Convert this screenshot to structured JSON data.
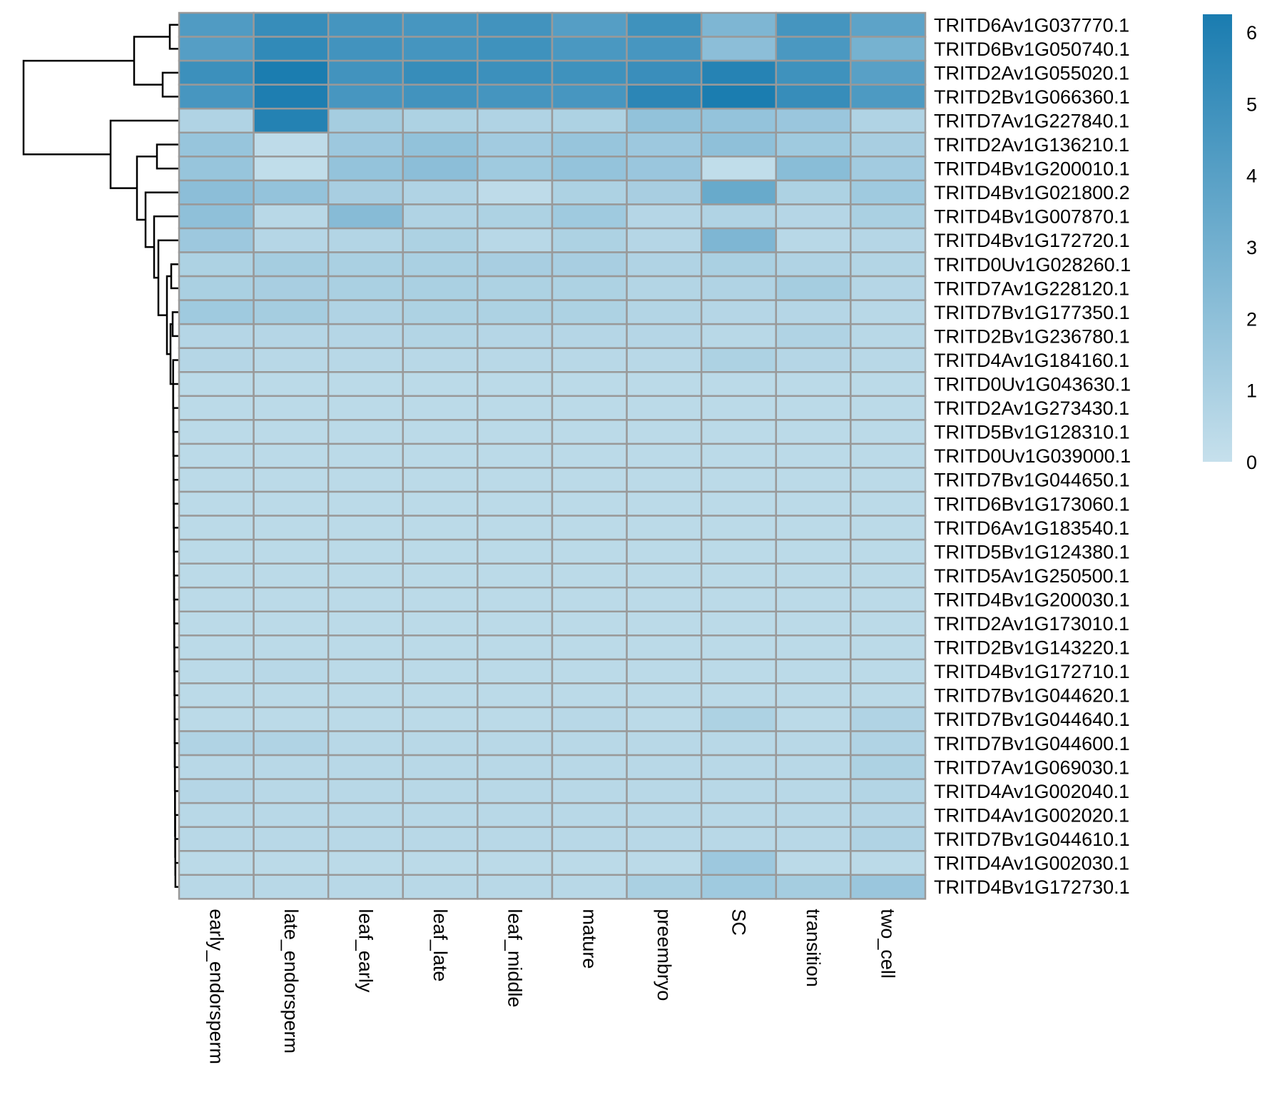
{
  "chart_data": {
    "type": "heatmap",
    "title": "",
    "columns": [
      "early_endorsperm",
      "late_endorsperm",
      "leaf_early",
      "leaf_late",
      "leaf_middle",
      "mature",
      "preembryo",
      "SC",
      "transition",
      "two_cell"
    ],
    "rows": [
      "TRITD6Av1G037770.1",
      "TRITD6Bv1G050740.1",
      "TRITD2Av1G055020.1",
      "TRITD2Bv1G066360.1",
      "TRITD7Av1G227840.1",
      "TRITD2Av1G136210.1",
      "TRITD4Bv1G200010.1",
      "TRITD4Bv1G021800.2",
      "TRITD4Bv1G007870.1",
      "TRITD4Bv1G172720.1",
      "TRITD0Uv1G028260.1",
      "TRITD7Av1G228120.1",
      "TRITD7Bv1G177350.1",
      "TRITD2Bv1G236780.1",
      "TRITD4Av1G184160.1",
      "TRITD0Uv1G043630.1",
      "TRITD2Av1G273430.1",
      "TRITD5Bv1G128310.1",
      "TRITD0Uv1G039000.1",
      "TRITD7Bv1G044650.1",
      "TRITD6Bv1G173060.1",
      "TRITD6Av1G183540.1",
      "TRITD5Bv1G124380.1",
      "TRITD5Av1G250500.1",
      "TRITD4Bv1G200030.1",
      "TRITD2Av1G173010.1",
      "TRITD2Bv1G143220.1",
      "TRITD4Bv1G172710.1",
      "TRITD7Bv1G044620.1",
      "TRITD7Bv1G044640.1",
      "TRITD7Bv1G044600.1",
      "TRITD7Av1G069030.1",
      "TRITD4Av1G002040.1",
      "TRITD4Av1G002020.1",
      "TRITD7Bv1G044610.1",
      "TRITD4Av1G002030.1",
      "TRITD4Bv1G172730.1"
    ],
    "values": [
      [
        4.3,
        5.2,
        4.7,
        4.6,
        4.8,
        4.1,
        4.9,
        2.6,
        4.7,
        3.8
      ],
      [
        4.1,
        5.4,
        4.8,
        4.7,
        4.9,
        4.5,
        4.6,
        2.1,
        4.5,
        2.9
      ],
      [
        5.0,
        6.2,
        4.8,
        5.2,
        5.0,
        4.9,
        5.1,
        5.8,
        4.9,
        4.0
      ],
      [
        4.6,
        6.1,
        4.6,
        4.8,
        4.7,
        4.6,
        5.6,
        6.2,
        5.2,
        4.4
      ],
      [
        0.8,
        5.9,
        1.2,
        0.9,
        0.8,
        0.9,
        1.9,
        1.8,
        1.6,
        0.8
      ],
      [
        1.7,
        0.3,
        1.5,
        1.9,
        1.3,
        1.7,
        1.5,
        2.0,
        1.4,
        1.1
      ],
      [
        1.7,
        0.2,
        1.8,
        2.1,
        1.4,
        1.8,
        1.6,
        0.2,
        2.2,
        1.3
      ],
      [
        2.1,
        1.8,
        1.1,
        0.8,
        0.3,
        0.9,
        1.1,
        3.4,
        0.9,
        1.4
      ],
      [
        2.0,
        0.5,
        2.3,
        0.8,
        0.9,
        1.4,
        0.6,
        0.8,
        0.6,
        1.0
      ],
      [
        1.5,
        0.6,
        0.7,
        0.9,
        0.5,
        0.9,
        0.6,
        2.6,
        0.5,
        0.6
      ],
      [
        0.9,
        1.2,
        1.0,
        1.0,
        1.1,
        1.1,
        0.8,
        1.0,
        0.8,
        0.7
      ],
      [
        1.0,
        1.1,
        1.0,
        1.0,
        0.9,
        0.9,
        0.7,
        0.8,
        1.2,
        0.6
      ],
      [
        1.4,
        1.2,
        0.8,
        0.9,
        0.9,
        0.9,
        0.7,
        0.6,
        0.6,
        0.5
      ],
      [
        0.6,
        0.6,
        0.6,
        0.7,
        0.6,
        0.6,
        0.6,
        0.5,
        0.8,
        0.5
      ],
      [
        0.6,
        0.5,
        0.5,
        0.5,
        0.5,
        0.5,
        0.5,
        0.9,
        0.6,
        0.5
      ],
      [
        0.4,
        0.4,
        0.4,
        0.4,
        0.4,
        0.4,
        0.4,
        0.4,
        0.4,
        0.4
      ],
      [
        0.4,
        0.4,
        0.4,
        0.4,
        0.4,
        0.4,
        0.4,
        0.4,
        0.4,
        0.4
      ],
      [
        0.4,
        0.4,
        0.4,
        0.4,
        0.4,
        0.4,
        0.4,
        0.4,
        0.4,
        0.4
      ],
      [
        0.4,
        0.4,
        0.4,
        0.4,
        0.4,
        0.4,
        0.4,
        0.4,
        0.4,
        0.4
      ],
      [
        0.4,
        0.4,
        0.4,
        0.4,
        0.4,
        0.4,
        0.4,
        0.4,
        0.4,
        0.4
      ],
      [
        0.4,
        0.4,
        0.4,
        0.4,
        0.4,
        0.4,
        0.4,
        0.4,
        0.4,
        0.4
      ],
      [
        0.4,
        0.4,
        0.4,
        0.4,
        0.4,
        0.4,
        0.4,
        0.4,
        0.4,
        0.4
      ],
      [
        0.4,
        0.4,
        0.4,
        0.4,
        0.4,
        0.4,
        0.4,
        0.4,
        0.4,
        0.4
      ],
      [
        0.4,
        0.4,
        0.4,
        0.4,
        0.4,
        0.4,
        0.4,
        0.4,
        0.4,
        0.4
      ],
      [
        0.4,
        0.4,
        0.4,
        0.4,
        0.4,
        0.4,
        0.4,
        0.4,
        0.4,
        0.4
      ],
      [
        0.4,
        0.4,
        0.4,
        0.4,
        0.4,
        0.4,
        0.4,
        0.4,
        0.4,
        0.4
      ],
      [
        0.4,
        0.4,
        0.4,
        0.4,
        0.4,
        0.4,
        0.4,
        0.4,
        0.4,
        0.4
      ],
      [
        0.4,
        0.5,
        0.4,
        0.4,
        0.4,
        0.4,
        0.4,
        0.4,
        0.4,
        0.4
      ],
      [
        0.4,
        0.4,
        0.4,
        0.4,
        0.4,
        0.4,
        0.4,
        0.4,
        0.4,
        0.4
      ],
      [
        0.4,
        0.4,
        0.4,
        0.4,
        0.4,
        0.5,
        0.4,
        0.9,
        0.4,
        0.8
      ],
      [
        0.8,
        0.8,
        0.5,
        0.5,
        0.5,
        0.5,
        0.5,
        0.5,
        0.5,
        0.8
      ],
      [
        0.5,
        0.5,
        0.5,
        0.5,
        0.5,
        0.5,
        0.5,
        0.5,
        0.5,
        0.9
      ],
      [
        0.6,
        0.5,
        0.5,
        0.5,
        0.5,
        0.5,
        0.5,
        0.5,
        0.5,
        0.7
      ],
      [
        0.5,
        0.5,
        0.5,
        0.5,
        0.5,
        0.5,
        0.5,
        0.5,
        0.5,
        0.6
      ],
      [
        0.5,
        0.5,
        0.5,
        0.5,
        0.5,
        0.5,
        0.5,
        0.5,
        0.5,
        0.8
      ],
      [
        0.4,
        0.4,
        0.4,
        0.4,
        0.4,
        0.4,
        0.4,
        1.5,
        0.4,
        0.4
      ],
      [
        0.5,
        0.5,
        0.5,
        0.5,
        0.5,
        0.5,
        1.0,
        1.4,
        1.2,
        1.6
      ]
    ],
    "color_scale": {
      "min": 0,
      "max": 6.25,
      "low_color": "#c6e0ec",
      "high_color": "#1a7cb0"
    },
    "legend": {
      "ticks": [
        0,
        1,
        2,
        3,
        4,
        5,
        6
      ],
      "placement": "right"
    },
    "dendrogram": {
      "side": "left"
    },
    "cell_border_color": "#999999"
  }
}
